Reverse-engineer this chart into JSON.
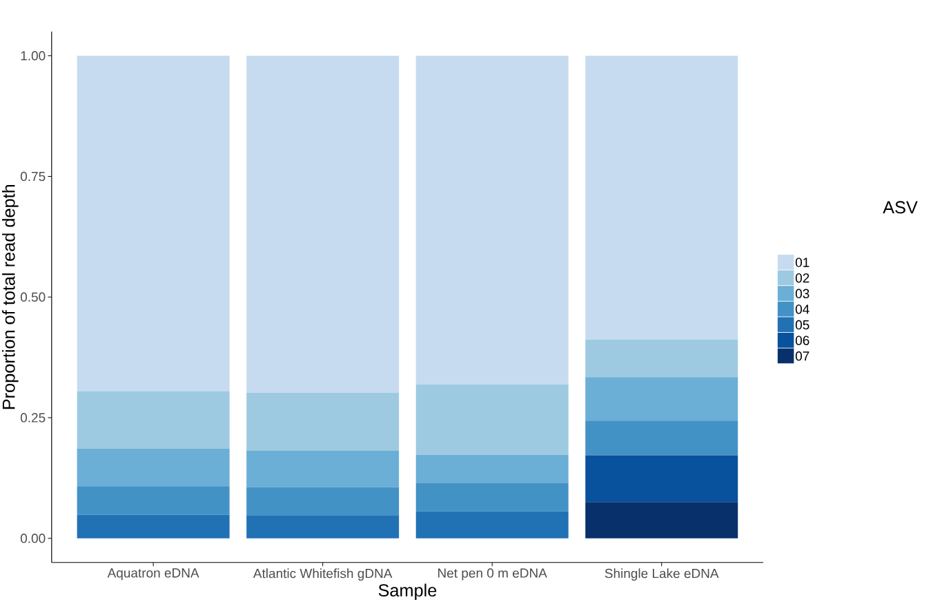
{
  "chart_data": {
    "type": "bar",
    "stacked": true,
    "xlabel": "Sample",
    "ylabel": "Proportion of total read depth",
    "legend_title": "ASV",
    "legend": "right",
    "grid": false,
    "categories": [
      "Aquatron eDNA",
      "Atlantic Whitefish gDNA",
      "Net pen 0 m eDNA",
      "Shingle Lake eDNA"
    ],
    "ylim": [
      -0.05,
      1.05
    ],
    "yticks": [
      {
        "value": 0,
        "label": "0.00"
      },
      {
        "value": 0.25,
        "label": "0.25"
      },
      {
        "value": 0.5,
        "label": "0.50"
      },
      {
        "value": 0.75,
        "label": "0.75"
      },
      {
        "value": 1,
        "label": "1.00"
      }
    ],
    "series": [
      {
        "name": "07",
        "color": "#08306b",
        "values": [
          0,
          0,
          0,
          0.075
        ]
      },
      {
        "name": "06",
        "color": "#08519c",
        "values": [
          0,
          0,
          0,
          0.097
        ]
      },
      {
        "name": "05",
        "color": "#2171b5",
        "values": [
          0.049,
          0.048,
          0.056,
          0
        ]
      },
      {
        "name": "04",
        "color": "#4292c6",
        "values": [
          0.059,
          0.058,
          0.058,
          0.072
        ]
      },
      {
        "name": "03",
        "color": "#6baed6",
        "values": [
          0.078,
          0.076,
          0.059,
          0.09
        ]
      },
      {
        "name": "02",
        "color": "#9ecae1",
        "values": [
          0.119,
          0.12,
          0.146,
          0.078
        ]
      },
      {
        "name": "01",
        "color": "#c6dbef",
        "values": [
          0.695,
          0.698,
          0.681,
          0.588
        ]
      }
    ]
  }
}
